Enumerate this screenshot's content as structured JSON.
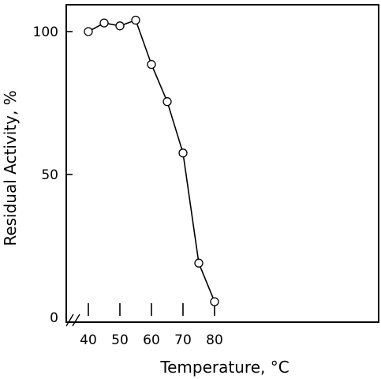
{
  "chart_data": {
    "type": "line",
    "title": "",
    "xlabel": "Temperature, °C",
    "ylabel": "Residual Activity, %",
    "xlim": [
      37,
      85
    ],
    "ylim": [
      0,
      110
    ],
    "x_ticks": [
      40,
      50,
      60,
      70,
      80
    ],
    "x_minor_ticks": [
      45,
      55,
      65,
      75
    ],
    "y_ticks": [
      0,
      50,
      100
    ],
    "grid": false,
    "legend": "none",
    "axis_break": "x-axis, left",
    "series": [
      {
        "marker": "open-circle",
        "x": [
          40,
          45,
          50,
          55,
          60,
          65,
          70,
          75,
          80
        ],
        "y": [
          100,
          103,
          102,
          104,
          88.5,
          75.5,
          57.5,
          19,
          5.5
        ]
      }
    ],
    "colors": {
      "line": "#000000",
      "marker_fill": "#ffffff"
    }
  }
}
